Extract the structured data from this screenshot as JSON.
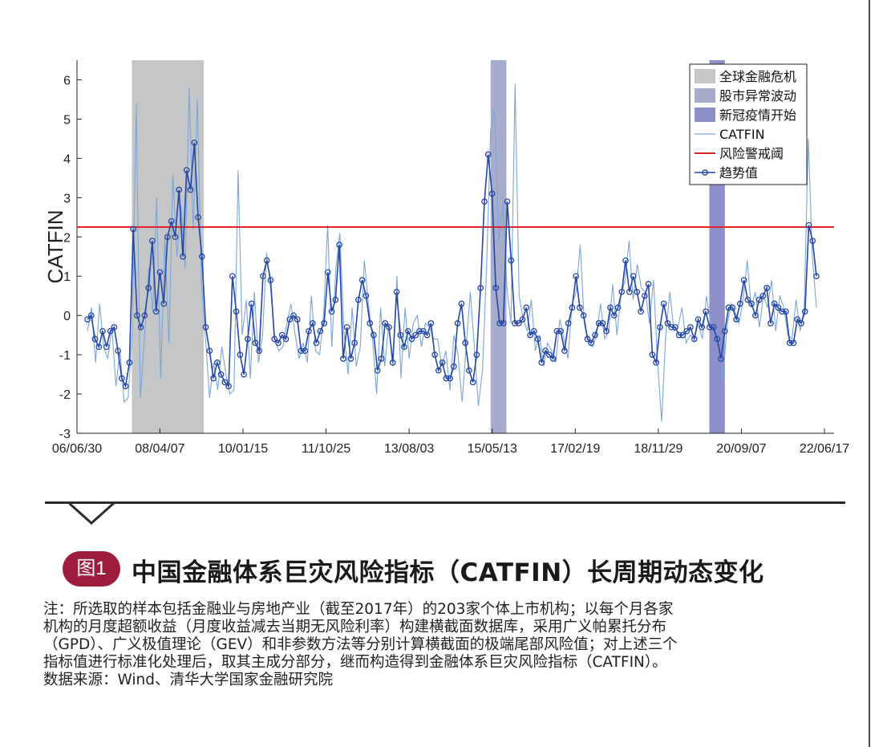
{
  "chart_data": {
    "type": "line",
    "ylabel": "CATFIN",
    "ylim": [
      -3,
      6.5
    ],
    "yticks": [
      -3,
      -2,
      -1,
      0,
      1,
      2,
      3,
      4,
      5,
      6
    ],
    "xlim": [
      "2006-06-30",
      "2022-08-31"
    ],
    "xtick_labels": [
      "06/06/30",
      "08/04/07",
      "10/01/15",
      "11/10/25",
      "13/08/03",
      "15/05/13",
      "17/02/19",
      "18/11/29",
      "20/09/07",
      "22/06/17"
    ],
    "threshold": 2.25,
    "shaded_periods": [
      {
        "label": "全球金融危机",
        "start": "2007-09-01",
        "end": "2009-03-15",
        "color": "#c4c6c8"
      },
      {
        "label": "股市异常波动",
        "start": "2015-05-01",
        "end": "2015-09-01",
        "color": "#a8accb"
      },
      {
        "label": "新冠疫情开始",
        "start": "2020-01-01",
        "end": "2020-05-01",
        "color": "#8d90c8"
      }
    ],
    "series": [
      {
        "name": "CATFIN",
        "color": "#7aa7d9",
        "values": [
          -0.4,
          0.2,
          -1.2,
          0.3,
          -0.8,
          -1.1,
          -0.3,
          -1.8,
          -0.9,
          -2.2,
          -2.1,
          -0.4,
          5.4,
          -2.1,
          -0.6,
          1.2,
          0.1,
          3.0,
          -1.6,
          2.0,
          -0.7,
          3.6,
          1.5,
          2.8,
          1.2,
          5.8,
          2.2,
          5.5,
          0.8,
          -0.6,
          -2.1,
          -1.2,
          -1.9,
          -0.8,
          -1.5,
          -2.0,
          -1.9,
          3.7,
          -0.5,
          0.4,
          -1.6,
          0.6,
          -1.2,
          -0.5,
          1.6,
          0.7,
          -0.6,
          -0.9,
          -0.8,
          -0.2,
          0.3,
          -0.5,
          -1.1,
          -0.7,
          -1.2,
          0.5,
          -0.9,
          -1.0,
          0.0,
          2.3,
          -0.8,
          1.2,
          2.1,
          -0.4,
          -1.5,
          0.2,
          -1.3,
          -0.8,
          1.4,
          0.3,
          -0.6,
          -2.0,
          0.2,
          -1.3,
          -0.2,
          -1.3,
          1.0,
          -1.6,
          0.2,
          -1.1,
          -0.2,
          0.0,
          -0.8,
          -0.2,
          -0.3,
          -0.6,
          -0.6,
          -1.3,
          -0.9,
          -1.9,
          -0.5,
          -1.0,
          -2.2,
          -0.8,
          0.6,
          -0.8,
          -2.3,
          -1.4,
          1.2,
          4.7,
          5.2,
          1.9,
          2.9,
          0.7,
          -0.2,
          5.9,
          0.5,
          -0.1,
          -0.4,
          0.4,
          -0.9,
          -0.5,
          -1.3,
          -0.7,
          -0.9,
          -1.2,
          -0.1,
          -0.6,
          -1.1,
          0.3,
          0.6,
          1.8,
          -0.2,
          -0.6,
          -0.8,
          -0.5,
          0.3,
          -0.6,
          -0.4,
          0.8,
          -0.5,
          0.5,
          0.9,
          1.9,
          0.4,
          1.3,
          0.7,
          0.6,
          -0.2,
          0.9,
          -1.2,
          -2.7,
          -0.5,
          0.6,
          -0.4,
          -0.3,
          0.2,
          -0.7,
          -0.5,
          -0.6,
          -0.2,
          -0.6,
          0.5,
          -0.2,
          -0.3,
          -0.6,
          -1.7,
          -0.3,
          0.3,
          0.1,
          -0.2,
          0.4,
          1.4,
          0.2,
          0.6,
          -0.3,
          0.5,
          0.2,
          0.9,
          -0.4,
          0.5,
          0.2,
          -0.5,
          -0.6,
          0.4,
          -0.4,
          0.2,
          4.5,
          1.5,
          0.2
        ]
      },
      {
        "name": "风险警戒阈",
        "color": "#e1232a",
        "values": [
          2.25,
          2.25
        ]
      },
      {
        "name": "趋势值",
        "color": "#2547a5",
        "values": [
          -0.1,
          0.0,
          -0.6,
          -0.8,
          -0.4,
          -0.8,
          -0.4,
          -0.3,
          -0.9,
          -1.6,
          -1.8,
          -1.2,
          2.2,
          0.0,
          -0.3,
          0.0,
          0.7,
          1.9,
          0.1,
          1.1,
          0.3,
          2.0,
          2.4,
          2.0,
          3.2,
          1.5,
          3.7,
          3.2,
          4.4,
          2.5,
          1.5,
          -0.3,
          -0.9,
          -1.6,
          -1.2,
          -1.5,
          -1.7,
          -1.8,
          1.0,
          0.1,
          -1.0,
          -1.5,
          -0.6,
          0.3,
          -0.7,
          -0.9,
          1.0,
          1.4,
          0.9,
          -0.6,
          -0.7,
          -0.5,
          -0.6,
          -0.1,
          0.0,
          -0.1,
          -0.9,
          -0.9,
          -0.4,
          -0.2,
          -0.7,
          -0.4,
          -0.2,
          1.1,
          0.1,
          0.4,
          1.8,
          -1.1,
          -0.3,
          -1.1,
          -0.7,
          0.4,
          0.9,
          0.5,
          -0.2,
          -0.5,
          -1.4,
          -1.1,
          -0.2,
          -0.3,
          -1.2,
          0.6,
          -0.5,
          -0.8,
          -0.4,
          -0.6,
          -0.5,
          -0.4,
          -0.4,
          -0.5,
          -0.2,
          -1.0,
          -1.4,
          -1.2,
          -1.6,
          -1.6,
          -1.3,
          -0.2,
          0.3,
          -0.7,
          -1.4,
          -1.7,
          -1.0,
          0.7,
          2.9,
          4.1,
          3.1,
          0.7,
          -0.2,
          -0.2,
          2.9,
          1.4,
          -0.2,
          -0.2,
          -0.1,
          0.2,
          -0.5,
          -0.4,
          -0.6,
          -1.2,
          -0.9,
          -1.0,
          -1.1,
          -0.4,
          -0.4,
          -0.9,
          -0.2,
          0.2,
          1.0,
          0.2,
          0.0,
          -0.6,
          -0.7,
          -0.5,
          -0.2,
          -0.2,
          -0.4,
          0.2,
          0.0,
          0.2,
          0.6,
          1.4,
          0.6,
          1.0,
          0.6,
          0.1,
          0.5,
          0.8,
          -1.0,
          -1.2,
          -0.3,
          0.3,
          -0.2,
          -0.3,
          -0.3,
          -0.5,
          -0.5,
          -0.4,
          -0.3,
          -0.6,
          -0.1,
          -0.3,
          0.1,
          -0.3,
          -0.3,
          -0.6,
          -1.1,
          -0.4,
          0.2,
          0.2,
          -0.1,
          0.3,
          0.9,
          0.4,
          0.3,
          0.0,
          0.4,
          0.5,
          0.7,
          -0.2,
          0.3,
          0.2,
          0.1,
          0.1,
          -0.7,
          -0.7,
          -0.1,
          -0.2,
          0.1,
          2.3,
          1.9,
          1.0
        ]
      }
    ],
    "legend": {
      "position": "top-right",
      "items": [
        {
          "label": "全球金融危机",
          "kind": "patch",
          "color": "#c4c6c8"
        },
        {
          "label": "股市异常波动",
          "kind": "patch",
          "color": "#a8accb"
        },
        {
          "label": "新冠疫情开始",
          "kind": "patch",
          "color": "#8d90c8"
        },
        {
          "label": "CATFIN",
          "kind": "line",
          "color": "#7aa7d9"
        },
        {
          "label": "风险警戒阈",
          "kind": "line",
          "color": "#e1232a"
        },
        {
          "label": "趋势值",
          "kind": "marker-line",
          "color": "#2547a5"
        }
      ]
    }
  },
  "figure": {
    "badge": "图1",
    "title": "中国金融体系巨灾风险指标（CATFIN）长周期动态变化"
  },
  "notes": [
    "注：所选取的样本包括金融业与房地产业（截至2017年）的203家个体上市机构；以每个月各家",
    "机构的月度超额收益（月度收益减去当期无风险利率）构建横截面数据库，采用广义帕累托分布",
    "（GPD）、广义极值理论（GEV）和非参数方法等分别计算横截面的极端尾部风险值；对上述三个",
    "指标值进行标准化处理后，取其主成分部分，继而构造得到金融体系巨灾风险指标（CATFIN）。",
    "数据来源：Wind、清华大学国家金融研究院"
  ]
}
